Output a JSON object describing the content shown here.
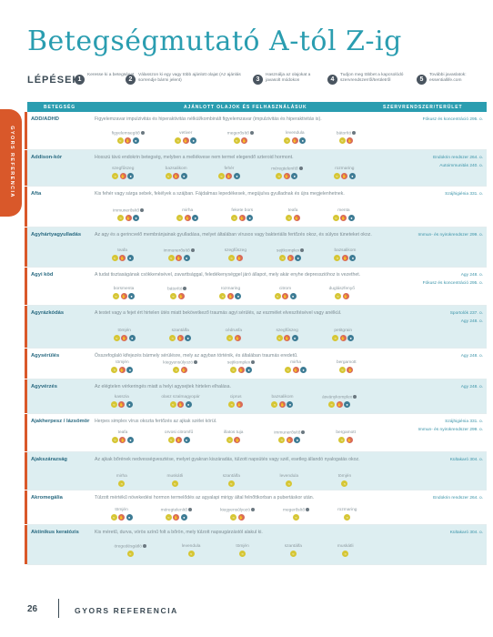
{
  "title": "Betegségmutató A-tól Z-ig",
  "steps": {
    "label": "LÉPÉSEK:",
    "items": [
      {
        "num": "1",
        "text": "Keresse ki a betegséget"
      },
      {
        "num": "2",
        "text": "Válasszon ki egy vagy több ajánlott olajat (Az ajánlás sorrendje bármi jelent)"
      },
      {
        "num": "3",
        "text": "Használja az olajokat a javasolt módokon"
      },
      {
        "num": "4",
        "text": "Tudjon meg többet a kapcsolódó szervrendszerről/területről"
      },
      {
        "num": "5",
        "text": "További javaslatok: essentiallife.com"
      }
    ]
  },
  "side_tab": "GYORS REFERENCIA",
  "table_header": {
    "col1": "BETEGSÉG",
    "col2": "AJÁNLOTT OLAJOK ÉS FELHASZNÁLÁSUK",
    "col3": "SZERVRENDSZER/TERÜLET"
  },
  "icon_legend": {
    "A": "aromatic",
    "T": "topical",
    "I": "internal"
  },
  "colors": {
    "accent": "#2a9db0",
    "orange": "#d9582a",
    "aromatic": "#d6c634",
    "topical": "#d86a59",
    "internal": "#3d7b94"
  },
  "rows": [
    {
      "name": "ADD/ADHD",
      "shade": false,
      "selected": true,
      "desc": "Figyelemzavar impulzivitás és hiperaktivitás nélkül/kombinált figyelemzavar (impulzivitás és hiperaktivitás is).",
      "oils": [
        {
          "name": "figyelemsegítő",
          "blend": true,
          "icons": "ATI"
        },
        {
          "name": "vetiver",
          "blend": false,
          "icons": "ATI"
        },
        {
          "name": "megerősítő",
          "blend": true,
          "icons": "AT"
        },
        {
          "name": "levendula",
          "blend": false,
          "icons": "ATI"
        },
        {
          "name": "bátorító",
          "blend": true,
          "icons": "AT"
        }
      ],
      "refs": [
        "Fókusz és koncentráció 295. o."
      ]
    },
    {
      "name": "Addison-kór",
      "shade": true,
      "selected": true,
      "desc": "Hosszú távú endokrin betegség, melyben a mellékvese nem termel elegendő szteroid hormont.",
      "oils": [
        {
          "name": "szegfűszeg",
          "blend": false,
          "icons": "ATI"
        },
        {
          "name": "bazsalikom",
          "blend": false,
          "icons": "ATI"
        },
        {
          "name": "fehér",
          "blend": false,
          "icons": "ATI"
        },
        {
          "name": "méregtelenítő",
          "blend": true,
          "icons": "ATI"
        },
        {
          "name": "rozmaring",
          "blend": false,
          "icons": "ATI"
        }
      ],
      "refs": [
        "Endokrin rendszer 264. o.",
        "Autoimmunitás 240. o."
      ]
    },
    {
      "name": "Afta",
      "shade": false,
      "selected": true,
      "desc": "Kis fehér vagy sárga sebek, fekélyek a szájban. Fájdalmas lepedékesek, megújulva gyulladnak és újra megjelenhetnek.",
      "oils": [
        {
          "name": "immunerősítő",
          "blend": true,
          "icons": "ATI"
        },
        {
          "name": "mirha",
          "blend": false,
          "icons": "ATI"
        },
        {
          "name": "fekete bors",
          "blend": false,
          "icons": "ATI"
        },
        {
          "name": "teafa",
          "blend": false,
          "icons": "AT"
        },
        {
          "name": "menta",
          "blend": false,
          "icons": "ATI"
        }
      ],
      "refs": [
        "Szájhigiénia 331. o."
      ]
    },
    {
      "name": "Agyhártyagyulladás",
      "shade": true,
      "selected": true,
      "desc": "Az agy és a gerincvelő membránjainak gyulladása, melyet általában vírusos vagy bakteriális fertőzés okoz, és súlyos tüneteket okoz.",
      "oils": [
        {
          "name": "teafa",
          "blend": false,
          "icons": "ATI"
        },
        {
          "name": "immunerősítő",
          "blend": true,
          "icons": "ATI"
        },
        {
          "name": "szegfűszeg",
          "blend": false,
          "icons": "AT"
        },
        {
          "name": "sejtkomplex",
          "blend": true,
          "icons": "ATI"
        },
        {
          "name": "bazsalikom",
          "blend": false,
          "icons": "ATI"
        }
      ],
      "refs": [
        "Immun- és nyirokrendszer 299. o."
      ]
    },
    {
      "name": "Agyi köd",
      "shade": false,
      "selected": true,
      "desc": "A tudat tisztaságának csökkenésével, zavarttsággal, feledékenységgel járó állapot, mely akár enyhe depresszióhoz is vezethet.",
      "oils": [
        {
          "name": "borsmenta",
          "blend": false,
          "icons": "ATI"
        },
        {
          "name": "bátorító",
          "blend": true,
          "icons": "AT"
        },
        {
          "name": "rozmaring",
          "blend": false,
          "icons": "ATI"
        },
        {
          "name": "citrom",
          "blend": false,
          "icons": "ATI"
        },
        {
          "name": "duglászfenyő",
          "blend": false,
          "icons": "AT"
        }
      ],
      "refs": [
        "Agy 248. o.",
        "Fókusz és koncentráció 295. o."
      ]
    },
    {
      "name": "Agyrázkódás",
      "shade": true,
      "selected": true,
      "desc": "A testet vagy a fejet ért hirtelen ütés miatt bekövetkező traumás agyi sérülés, az eszmélet elveszítésével vagy anélkül.",
      "oils": [
        {
          "name": "tömjén",
          "blend": false,
          "icons": "ATI"
        },
        {
          "name": "szantálfa",
          "blend": false,
          "icons": "ATI"
        },
        {
          "name": "cédrusfa",
          "blend": false,
          "icons": "AT"
        },
        {
          "name": "szegfűszeg",
          "blend": false,
          "icons": "ATI"
        },
        {
          "name": "petitgrain",
          "blend": false,
          "icons": "ATI"
        }
      ],
      "refs": [
        "Sportolók 237. o.",
        "Agy 248. o."
      ]
    },
    {
      "name": "Agysérülés",
      "shade": false,
      "selected": true,
      "desc": "Összefoglaló kifejezés bármely sérülésre, mely az agyban történik, és általában traumás eredetű.",
      "oils": [
        {
          "name": "tömjén",
          "blend": false,
          "icons": "ATI"
        },
        {
          "name": "kiegyensúlyozó",
          "blend": true,
          "icons": "AT"
        },
        {
          "name": "sejtkomplex",
          "blend": true,
          "icons": "ATI"
        },
        {
          "name": "mirha",
          "blend": false,
          "icons": "ATI"
        },
        {
          "name": "bergamott",
          "blend": false,
          "icons": "AT"
        }
      ],
      "refs": [
        "Agy 248. o."
      ]
    },
    {
      "name": "Agyvérzés",
      "shade": true,
      "selected": true,
      "desc": "Az elégtelen vérkeringés miatt a helyi agysejtek hirtelen elhalása.",
      "oils": [
        {
          "name": "kasszia",
          "blend": false,
          "icons": "ATI"
        },
        {
          "name": "olasz szalmagyopár",
          "blend": false,
          "icons": "ATI"
        },
        {
          "name": "ciprus",
          "blend": false,
          "icons": "AT"
        },
        {
          "name": "bazsalikom",
          "blend": false,
          "icons": "ATI"
        },
        {
          "name": "ásványkomplex",
          "blend": true,
          "icons": "ATI"
        }
      ],
      "refs": [
        "Agy 248. o."
      ]
    },
    {
      "name": "Ajakherpesz / lázsömör",
      "shade": false,
      "selected": true,
      "desc": "Herpes simplex vírus okozta fertőzés az ajkak szélei körül.",
      "oils": [
        {
          "name": "teafa",
          "blend": false,
          "icons": "ATI"
        },
        {
          "name": "orvosi citromfű",
          "blend": false,
          "icons": "ATI"
        },
        {
          "name": "illatos tuja",
          "blend": false,
          "icons": "AT"
        },
        {
          "name": "immunerősítő",
          "blend": true,
          "icons": "ATI"
        },
        {
          "name": "bergamott",
          "blend": false,
          "icons": "AT"
        }
      ],
      "refs": [
        "Szájhigiénia 331. o.",
        "Immun- és nyirokrendszer 299. o."
      ]
    },
    {
      "name": "Ajakszárazság",
      "shade": true,
      "selected": true,
      "desc": "Az ajkak bőrének nedvességvesztése, melyet gyakran kiszáradás, túlzott napsütés vagy szél, esetleg állandó nyalogatás okoz.",
      "oils": [
        {
          "name": "mirha",
          "blend": false,
          "icons": "A"
        },
        {
          "name": "muskátli",
          "blend": false,
          "icons": "A"
        },
        {
          "name": "szantálfa",
          "blend": false,
          "icons": "A"
        },
        {
          "name": "levendula",
          "blend": false,
          "icons": "A"
        },
        {
          "name": "tömjén",
          "blend": false,
          "icons": "A"
        }
      ],
      "refs": [
        "Kültakaró 304. o."
      ]
    },
    {
      "name": "Akromegália",
      "shade": false,
      "selected": true,
      "desc": "Túlzott mértékű növekedési hormon termelődés az agyalapi mirigy által felnőttkorban a pubertáskor után.",
      "oils": [
        {
          "name": "tömjén",
          "blend": false,
          "icons": "ATI"
        },
        {
          "name": "méregtelenítő",
          "blend": true,
          "icons": "ATI"
        },
        {
          "name": "kiegyensúlyozó",
          "blend": true,
          "icons": "AT"
        },
        {
          "name": "megerősítő",
          "blend": true,
          "icons": "A"
        },
        {
          "name": "rozmaring",
          "blend": false,
          "icons": "A"
        }
      ],
      "refs": [
        "Endokrin rendszer 264. o."
      ]
    },
    {
      "name": "Aktinikus keratózis",
      "shade": true,
      "selected": true,
      "desc": "Kis méretű, durva, vörös színű folt a bőrön, mely túlzott napsugárzástól alakul ki.",
      "oils": [
        {
          "name": "öregedésgátló",
          "blend": true,
          "icons": "A"
        },
        {
          "name": "levendula",
          "blend": false,
          "icons": "A"
        },
        {
          "name": "tömjén",
          "blend": false,
          "icons": "A"
        },
        {
          "name": "szantálfa",
          "blend": false,
          "icons": "A"
        },
        {
          "name": "muskátli",
          "blend": false,
          "icons": "A"
        }
      ],
      "refs": [
        "Kültakaró 304. o."
      ]
    }
  ],
  "footer": {
    "page": "26",
    "label": "GYORS REFERENCIA"
  }
}
